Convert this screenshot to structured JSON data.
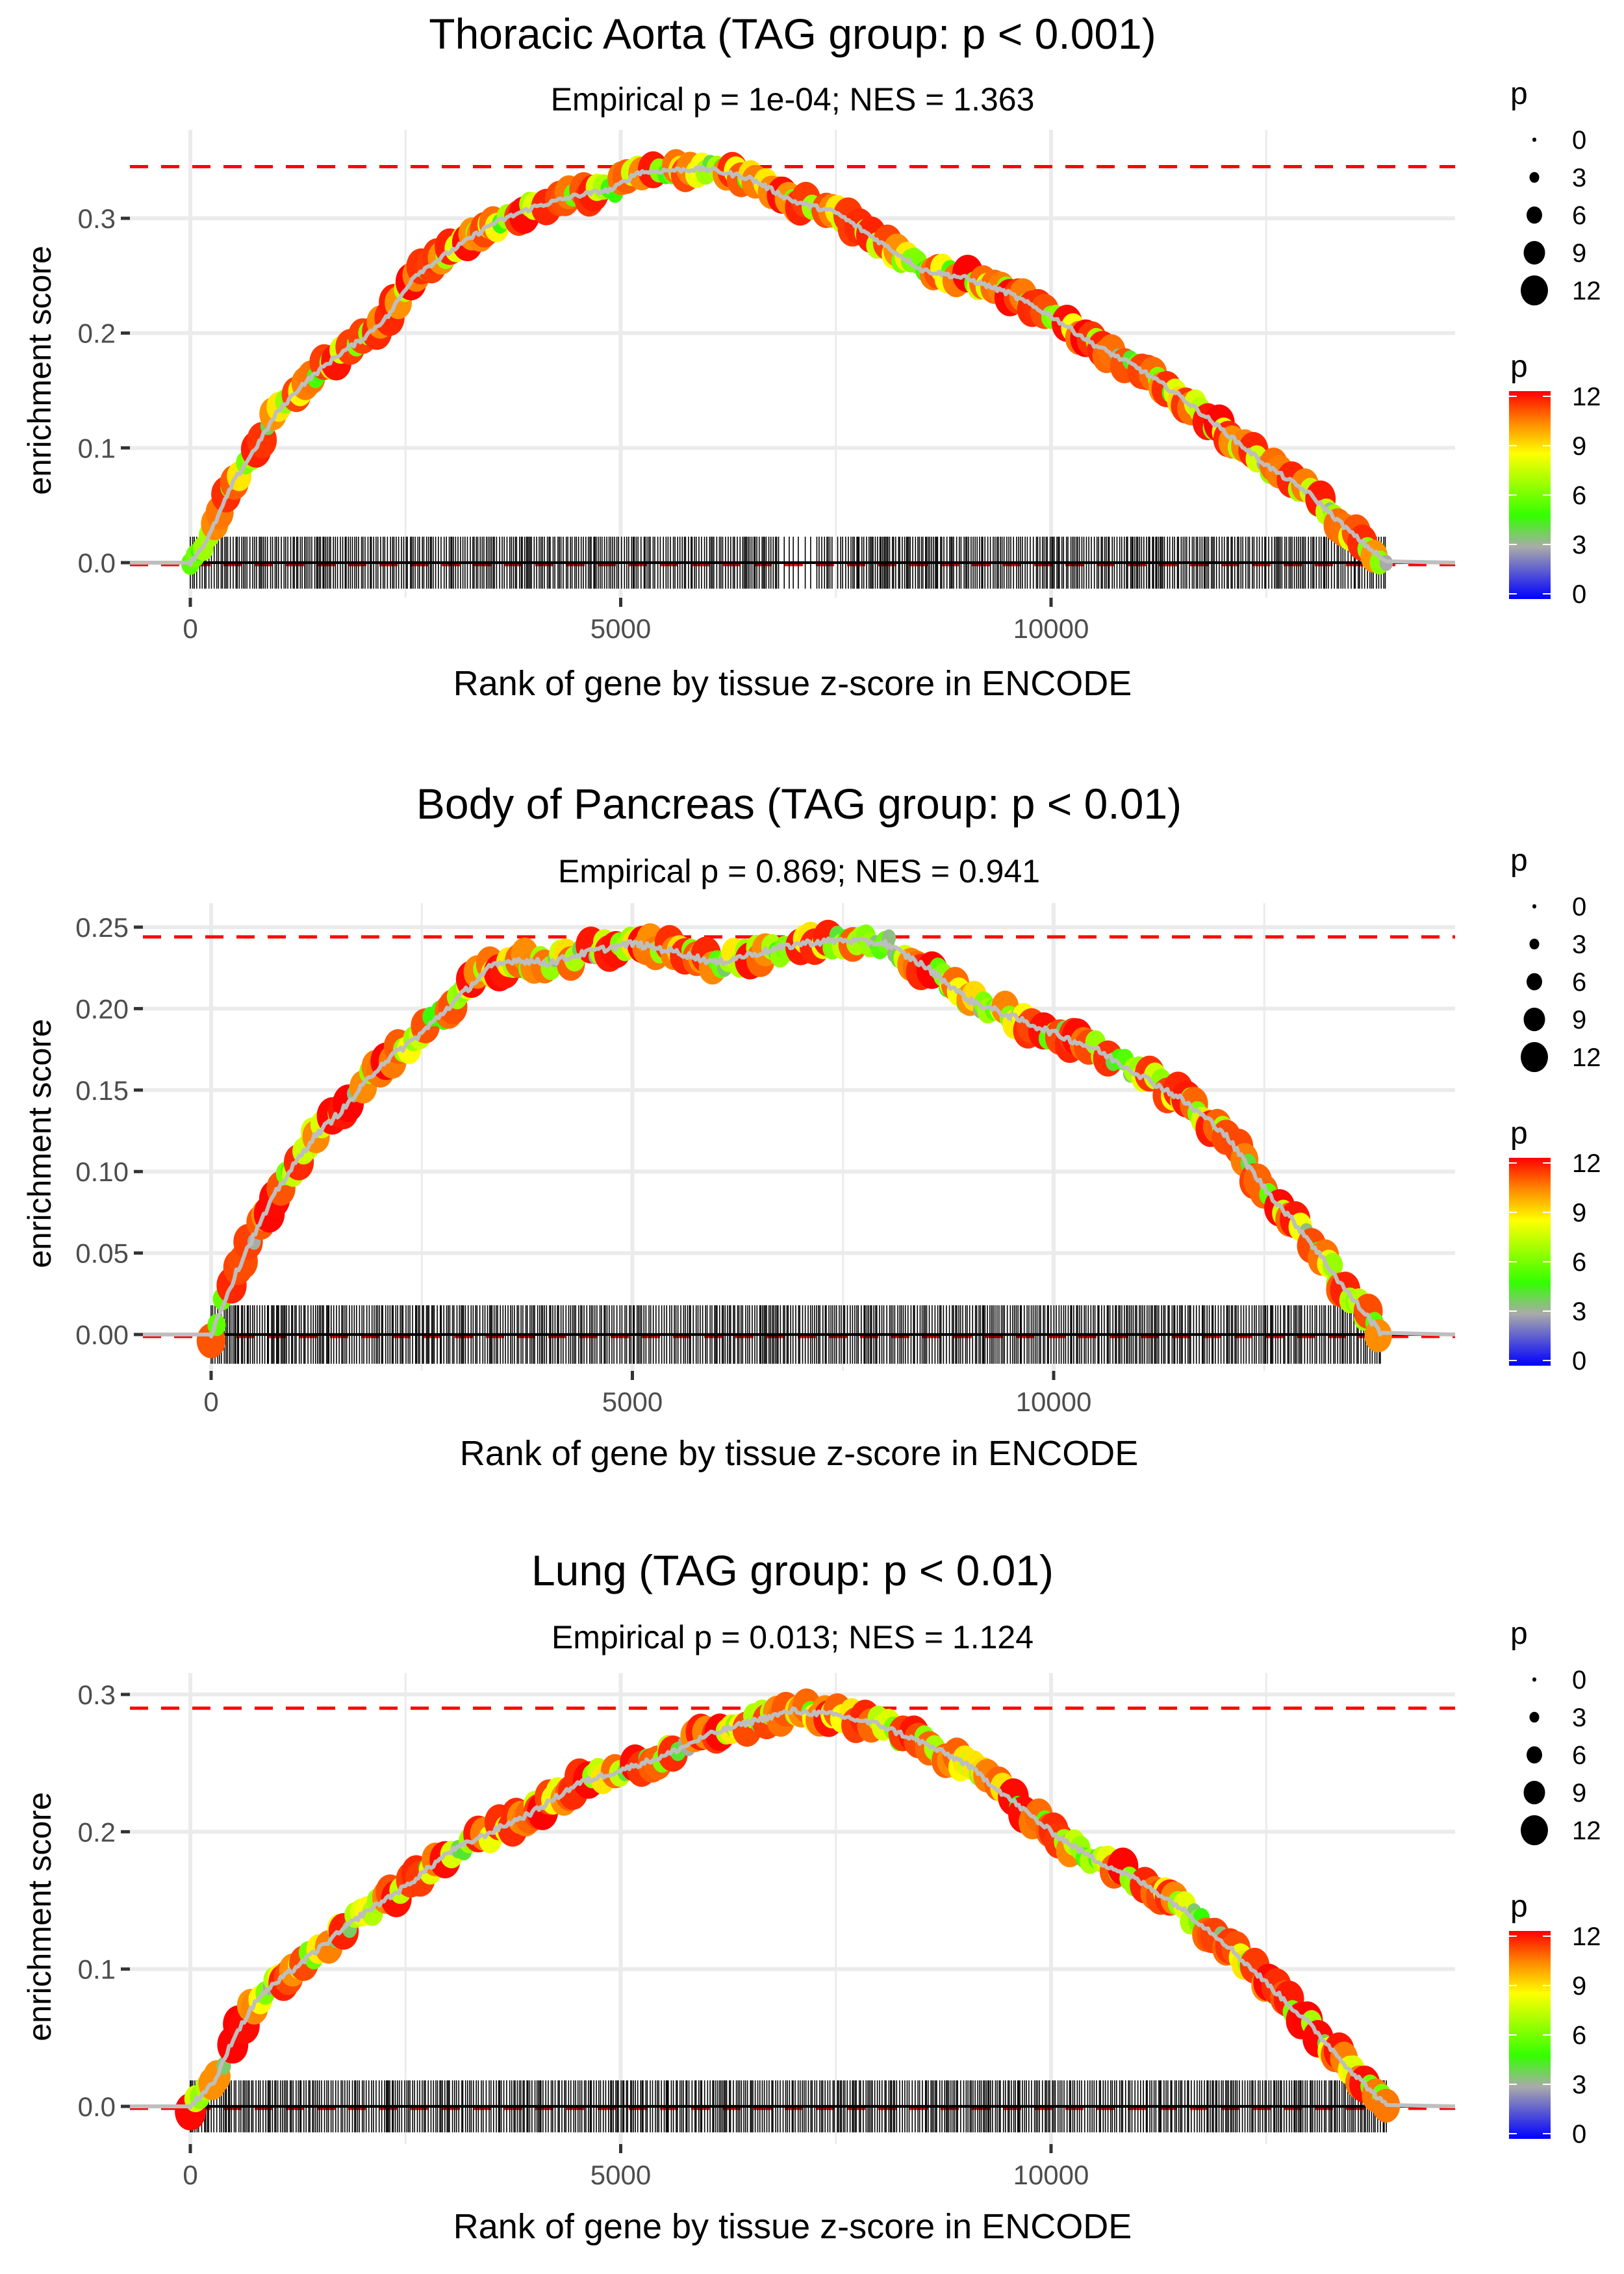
{
  "chart_data": [
    {
      "type": "scatter",
      "title": "Thoracic Aorta (TAG group: p < 0.001)",
      "subtitle": "Empirical p = 1e-04; NES = 1.363",
      "xlabel": "Rank of gene by tissue z-score in ENCODE",
      "ylabel": "enrichment score",
      "xlim": [
        -700,
        14700
      ],
      "ylim": [
        -0.03,
        0.36
      ],
      "xticks": [
        0,
        5000,
        10000
      ],
      "xtick_labels": [
        "0",
        "5000",
        "10000"
      ],
      "yticks": [
        0.0,
        0.1,
        0.2,
        0.3
      ],
      "ytick_labels": [
        "0.0",
        "0.1",
        "0.2",
        "0.3"
      ],
      "max_es_line": 0.345,
      "grid": true,
      "curve": {
        "x": [
          0,
          200,
          500,
          800,
          1000,
          1300,
          1700,
          2000,
          2300,
          2600,
          3000,
          3500,
          4000,
          4500,
          4900,
          5200,
          5600,
          6000,
          6500,
          7000,
          7500,
          8000,
          8500,
          9000,
          9500,
          10000,
          10500,
          11000,
          11500,
          12000,
          12500,
          13000,
          13500,
          13900
        ],
        "y": [
          0,
          0.02,
          0.07,
          0.105,
          0.13,
          0.155,
          0.18,
          0.195,
          0.215,
          0.25,
          0.27,
          0.295,
          0.31,
          0.32,
          0.325,
          0.34,
          0.342,
          0.343,
          0.335,
          0.315,
          0.305,
          0.28,
          0.255,
          0.248,
          0.235,
          0.215,
          0.19,
          0.17,
          0.145,
          0.115,
          0.085,
          0.06,
          0.025,
          0.0
        ]
      },
      "rug_range": [
        0,
        13900
      ]
    },
    {
      "type": "scatter",
      "title": "Body of Pancreas (TAG group: p < 0.01)",
      "subtitle": "Empirical p = 0.869; NES = 0.941",
      "xlabel": "Rank of gene by tissue z-score in ENCODE",
      "ylabel": "enrichment score",
      "xlim": [
        -700,
        14700
      ],
      "ylim": [
        -0.015,
        0.255
      ],
      "xticks": [
        0,
        5000,
        10000
      ],
      "xtick_labels": [
        "0",
        "5000",
        "10000"
      ],
      "yticks": [
        0.0,
        0.05,
        0.1,
        0.15,
        0.2,
        0.25
      ],
      "ytick_labels": [
        "0.00",
        "0.05",
        "0.10",
        "0.15",
        "0.20",
        "0.25"
      ],
      "max_es_line": 0.244,
      "grid": true,
      "curve": {
        "x": [
          0,
          150,
          400,
          800,
          1200,
          1600,
          2000,
          2500,
          3000,
          3300,
          3600,
          4000,
          4500,
          5000,
          5500,
          6000,
          6300,
          7000,
          7500,
          8000,
          8500,
          9000,
          9500,
          10000,
          10500,
          11000,
          11500,
          12000,
          12500,
          13000,
          13500,
          13900
        ],
        "y": [
          0,
          0.02,
          0.05,
          0.09,
          0.12,
          0.14,
          0.165,
          0.185,
          0.21,
          0.225,
          0.23,
          0.228,
          0.235,
          0.24,
          0.235,
          0.228,
          0.232,
          0.24,
          0.242,
          0.24,
          0.225,
          0.205,
          0.195,
          0.185,
          0.175,
          0.16,
          0.145,
          0.125,
          0.09,
          0.06,
          0.025,
          0.0
        ]
      },
      "rug_range": [
        0,
        13900
      ]
    },
    {
      "type": "scatter",
      "title": "Lung (TAG group: p < 0.01)",
      "subtitle": "Empirical p = 0.013; NES = 1.124",
      "xlabel": "Rank of gene by tissue z-score in ENCODE",
      "ylabel": "enrichment score",
      "xlim": [
        -700,
        14700
      ],
      "ylim": [
        -0.02,
        0.3
      ],
      "xticks": [
        0,
        5000,
        10000
      ],
      "xtick_labels": [
        "0",
        "5000",
        "10000"
      ],
      "yticks": [
        0.0,
        0.1,
        0.2,
        0.3
      ],
      "ytick_labels": [
        "0.0",
        "0.1",
        "0.2",
        "0.3"
      ],
      "max_es_line": 0.29,
      "grid": true,
      "curve": {
        "x": [
          0,
          300,
          500,
          800,
          1200,
          1600,
          2000,
          2500,
          3000,
          3500,
          4000,
          4500,
          5000,
          5500,
          6000,
          6500,
          7000,
          7500,
          8000,
          8500,
          9000,
          9500,
          10000,
          10500,
          11000,
          11500,
          12000,
          12500,
          13000,
          13500,
          13900
        ],
        "y": [
          0,
          0.02,
          0.05,
          0.08,
          0.1,
          0.12,
          0.14,
          0.16,
          0.185,
          0.2,
          0.215,
          0.235,
          0.245,
          0.255,
          0.27,
          0.28,
          0.288,
          0.285,
          0.278,
          0.265,
          0.25,
          0.225,
          0.2,
          0.18,
          0.165,
          0.145,
          0.12,
          0.09,
          0.06,
          0.025,
          0.0
        ]
      },
      "rug_range": [
        0,
        13900
      ]
    }
  ],
  "legend": {
    "size_title": "p",
    "size_values": [
      0,
      3,
      6,
      9,
      12
    ],
    "size_labels": [
      "0",
      "3",
      "6",
      "9",
      "12"
    ],
    "color_title": "p",
    "color_labels": [
      "12",
      "9",
      "6",
      "3",
      "0"
    ],
    "color_range": [
      0,
      12
    ],
    "color_stops": [
      "#0000ff",
      "#aaaaaa",
      "#33ff00",
      "#ffff00",
      "#ff8800",
      "#ff0000"
    ]
  },
  "colors": {
    "max_line": "#ff0000",
    "curve": "#bebebe",
    "grid": "#ebebeb",
    "tick_text": "#4d4d4d"
  }
}
